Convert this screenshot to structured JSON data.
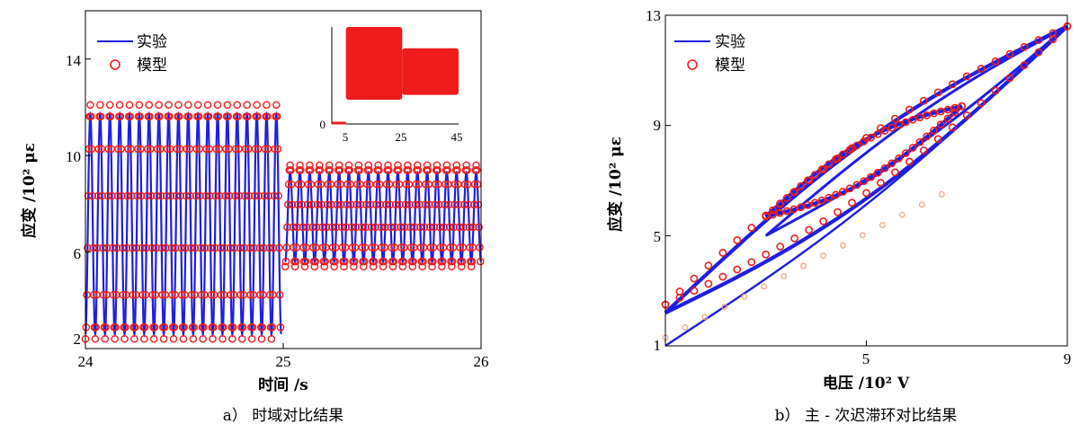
{
  "chart_data": [
    {
      "type": "line",
      "panel": "a",
      "caption": "a） 时域对比结果",
      "xlabel": "时间 /s",
      "ylabel": "应变 /10² με",
      "xlim": [
        24,
        26
      ],
      "ylim": [
        2,
        16
      ],
      "xticks": [
        "24",
        "25",
        "26"
      ],
      "yticks": [
        "2",
        "6",
        "10",
        "14"
      ],
      "legend": {
        "position": "top-left",
        "entries": [
          "实验",
          "模型"
        ]
      },
      "grid": false,
      "series": [
        {
          "name": "实验",
          "style": "line",
          "color": "#1f1fe0",
          "segments": [
            {
              "x_range": [
                24.0,
                24.99
              ],
              "y_min": 2.6,
              "y_max": 11.7,
              "cycles": 20
            },
            {
              "x_range": [
                25.01,
                26.0
              ],
              "y_min": 5.6,
              "y_max": 9.3,
              "cycles": 20
            }
          ]
        },
        {
          "name": "模型",
          "style": "circle",
          "color": "#ee1c1c",
          "segments": [
            {
              "x_range": [
                24.0,
                24.99
              ],
              "y_min": 2.4,
              "y_max": 12.1,
              "cycles": 20
            },
            {
              "x_range": [
                25.01,
                26.0
              ],
              "y_min": 5.4,
              "y_max": 9.6,
              "cycles": 20
            }
          ]
        }
      ],
      "inset": {
        "xticks": [
          "5",
          "25",
          "45"
        ],
        "yticks": [
          "0"
        ],
        "xlim": [
          0,
          45
        ],
        "blocks": [
          {
            "x": [
              5,
              25
            ],
            "y": [
              0.25,
              1.0
            ]
          },
          {
            "x": [
              25,
              45
            ],
            "y": [
              0.3,
              0.78
            ]
          }
        ]
      }
    },
    {
      "type": "scatter",
      "panel": "b",
      "caption": "b） 主 - 次迟滞环对比结果",
      "xlabel": "电压 /10² V",
      "ylabel": "应变 /10² με",
      "xlim": [
        1,
        9
      ],
      "ylim": [
        1,
        13
      ],
      "xticks": [
        "5",
        "9"
      ],
      "yticks": [
        "1",
        "5",
        "9",
        "13"
      ],
      "legend": {
        "position": "top-left",
        "entries": [
          "实验",
          "模型"
        ]
      },
      "grid": false,
      "series": [
        {
          "name": "实验",
          "style": "line",
          "color": "#1f1fe0",
          "loops": [
            {
              "kind": "major",
              "from": [
                1.0,
                2.2
              ],
              "to": [
                9.0,
                12.6
              ]
            },
            {
              "kind": "minor",
              "from": [
                3.0,
                5.7
              ],
              "to": [
                6.9,
                9.7
              ]
            },
            {
              "kind": "initial",
              "from": [
                1.0,
                1.0
              ],
              "to": [
                9.0,
                12.6
              ]
            }
          ]
        },
        {
          "name": "模型",
          "style": "circle",
          "color": "#ee1c1c",
          "loops": [
            {
              "kind": "major",
              "from": [
                1.0,
                2.5
              ],
              "to": [
                9.0,
                12.6
              ]
            },
            {
              "kind": "minor",
              "from": [
                3.0,
                5.7
              ],
              "to": [
                6.9,
                9.7
              ]
            }
          ]
        }
      ]
    }
  ]
}
